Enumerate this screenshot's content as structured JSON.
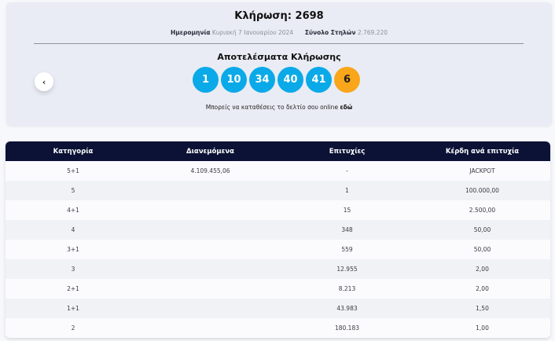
{
  "draw": {
    "title": "Κλήρωση: 2698",
    "date_label": "Ημερομηνία",
    "date_value": "Κυριακή 7 Ιανουαρίου 2024",
    "columns_label": "Σύνολο Στηλών",
    "columns_value": "2.769.220",
    "results_title": "Αποτελέσματα Κλήρωσης",
    "numbers": [
      "1",
      "10",
      "34",
      "40",
      "41"
    ],
    "bonus_number": "6",
    "deposit_text": "Μπορείς να καταθέσεις το δελτίο σου online",
    "deposit_link": "εδώ",
    "prev_icon": "‹",
    "colors": {
      "ball": "#0aa9e8",
      "bonus_ball": "#f9a61b",
      "header": "#0b1235"
    }
  },
  "table": {
    "headers": [
      "Κατηγορία",
      "Διανεμόμενα",
      "Επιτυχίες",
      "Κέρδη ανά επιτυχία"
    ],
    "rows": [
      [
        "5+1",
        "4.109.455,06",
        "-",
        "JACKPOT"
      ],
      [
        "5",
        "",
        "1",
        "100.000,00"
      ],
      [
        "4+1",
        "",
        "15",
        "2.500,00"
      ],
      [
        "4",
        "",
        "348",
        "50,00"
      ],
      [
        "3+1",
        "",
        "559",
        "50,00"
      ],
      [
        "3",
        "",
        "12.955",
        "2,00"
      ],
      [
        "2+1",
        "",
        "8.213",
        "2,00"
      ],
      [
        "1+1",
        "",
        "43.983",
        "1,50"
      ],
      [
        "2",
        "",
        "180.183",
        "1,00"
      ]
    ]
  }
}
